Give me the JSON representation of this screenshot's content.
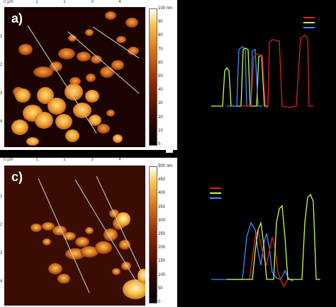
{
  "panel_a": {
    "label": "a)",
    "top_ticks": [
      "0 µm",
      "1",
      "2",
      "3",
      "4"
    ],
    "left_ticks": [
      "",
      "1",
      "2",
      "3",
      "4"
    ],
    "colorbar_ticks": [
      "100 nm",
      "90",
      "80",
      "70",
      "60",
      "50",
      "40",
      "30",
      "20",
      "10",
      "0"
    ]
  },
  "panel_c": {
    "label": "c)",
    "top_ticks": [
      "0 µm",
      "1",
      "2",
      "3",
      "4"
    ],
    "left_ticks": [
      "",
      "1",
      "2",
      "3",
      "4"
    ],
    "colorbar_ticks": [
      "500 nm",
      "450",
      "400",
      "350",
      "300",
      "250",
      "200",
      "150",
      "100",
      "50",
      "0"
    ]
  },
  "colors": {
    "red": "#e02020",
    "green": "#c8ff3c",
    "blue": "#3c8cff",
    "scan_line": "#c8c8c8"
  }
}
